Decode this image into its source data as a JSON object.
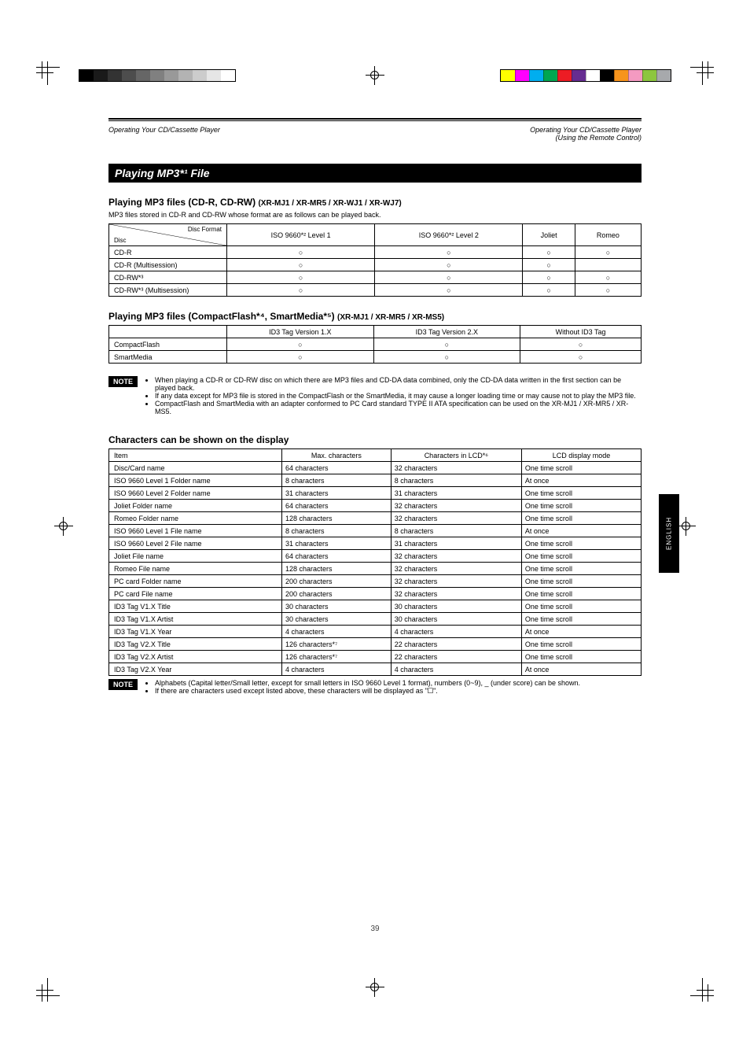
{
  "header": {
    "left": "Operating Your CD/Cassette Player",
    "right": "Operating Your CD/Cassette Player\n(Using the Remote Control)"
  },
  "section_title": "Playing MP3*¹ File",
  "subsection1": {
    "title": "Playing MP3 files (CD-R, CD-RW)",
    "label": "(XR-MJ1 / XR-MR5 / XR-WJ1 / XR-WJ7)",
    "desc": "MP3 files stored in CD-R and CD-RW whose format are as follows can be played back.",
    "rowLabel": "Disc",
    "colLabel": "Disc Format",
    "columns": [
      "ISO 9660*² Level 1",
      "ISO 9660*² Level 2",
      "Joliet",
      "Romeo"
    ],
    "rows": [
      {
        "name": "CD-R",
        "cells": [
          "○",
          "○",
          "○",
          "○"
        ]
      },
      {
        "name": "CD-R (Multisession)",
        "cells": [
          "○",
          "○",
          "○",
          ""
        ]
      },
      {
        "name": "CD-RW*³",
        "cells": [
          "○",
          "○",
          "○",
          "○"
        ]
      },
      {
        "name": "CD-RW*³ (Multisession)",
        "cells": [
          "○",
          "○",
          "○",
          "○"
        ]
      }
    ]
  },
  "subsection2": {
    "title": "Playing MP3 files (CompactFlash*⁴, SmartMedia*⁵)",
    "label": "(XR-MJ1 / XR-MR5 / XR-MS5)",
    "columns": [
      "ID3 Tag Version 1.X",
      "ID3 Tag Version 2.X",
      "Without ID3 Tag"
    ],
    "rows": [
      {
        "name": "CompactFlash",
        "cells": [
          "○",
          "○",
          "○"
        ]
      },
      {
        "name": "SmartMedia",
        "cells": [
          "○",
          "○",
          "○"
        ]
      }
    ]
  },
  "note1": {
    "badge": "NOTE",
    "items": [
      "When playing a CD-R or CD-RW disc on which there are MP3 files and CD-DA data combined, only the CD-DA data written in the first section can be played back.",
      "If any data except for MP3 file is stored in the CompactFlash or the SmartMedia, it may cause a longer loading time or may cause not to play the MP3 file.",
      "CompactFlash and SmartMedia with an adapter conformed to PC Card standard TYPE II ATA specification can be used on the XR-MJ1 / XR-MR5 / XR-MS5."
    ]
  },
  "char_limit": {
    "title": "Characters can be shown on the display",
    "columns": [
      "Item",
      "Max. characters",
      "Characters in LCD*⁶",
      "LCD display mode"
    ],
    "rows": [
      [
        "Disc/Card name",
        "64 characters",
        "32 characters",
        "One time scroll"
      ],
      [
        "ISO 9660 Level 1 Folder name",
        "8 characters",
        "8 characters",
        "At once"
      ],
      [
        "ISO 9660 Level 2 Folder name",
        "31 characters",
        "31 characters",
        "One time scroll"
      ],
      [
        "Joliet Folder name",
        "64 characters",
        "32 characters",
        "One time scroll"
      ],
      [
        "Romeo Folder name",
        "128 characters",
        "32 characters",
        "One time scroll"
      ],
      [
        "ISO 9660 Level 1 File name",
        "8 characters",
        "8 characters",
        "At once"
      ],
      [
        "ISO 9660 Level 2 File name",
        "31 characters",
        "31 characters",
        "One time scroll"
      ],
      [
        "Joliet File name",
        "64 characters",
        "32 characters",
        "One time scroll"
      ],
      [
        "Romeo File name",
        "128 characters",
        "32 characters",
        "One time scroll"
      ],
      [
        "PC card Folder name",
        "200 characters",
        "32 characters",
        "One time scroll"
      ],
      [
        "PC card File name",
        "200 characters",
        "32 characters",
        "One time scroll"
      ],
      [
        "ID3 Tag V1.X Title",
        "30 characters",
        "30 characters",
        "One time scroll"
      ],
      [
        "ID3 Tag V1.X Artist",
        "30 characters",
        "30 characters",
        "One time scroll"
      ],
      [
        "ID3 Tag V1.X Year",
        "4 characters",
        "4 characters",
        "At once"
      ],
      [
        "ID3 Tag V2.X Title",
        "126 characters*⁷",
        "22 characters",
        "One time scroll"
      ],
      [
        "ID3 Tag V2.X Artist",
        "126 characters*⁷",
        "22 characters",
        "One time scroll"
      ],
      [
        "ID3 Tag V2.X Year",
        "4 characters",
        "4 characters",
        "At once"
      ]
    ]
  },
  "note2": {
    "badge": "NOTE",
    "items": [
      "Alphabets (Capital letter/Small letter, except for small letters in ISO 9660 Level 1 format), numbers (0~9), _ (under score) can be shown.",
      "If there are characters used except listed above, these characters will be displayed as \"🞏\"."
    ]
  },
  "page_number": "39",
  "gray_swatches": [
    "#000000",
    "#1a1a1a",
    "#333333",
    "#4d4d4d",
    "#666666",
    "#808080",
    "#999999",
    "#b3b3b3",
    "#cccccc",
    "#e6e6e6",
    "#ffffff"
  ],
  "color_swatches": [
    "#ffff00",
    "#ff00ff",
    "#00aeef",
    "#00a651",
    "#ed1c24",
    "#662d91",
    "#ffffff",
    "#000000",
    "#f7941d",
    "#f49ac1",
    "#8dc63f",
    "#a7a9ac"
  ]
}
